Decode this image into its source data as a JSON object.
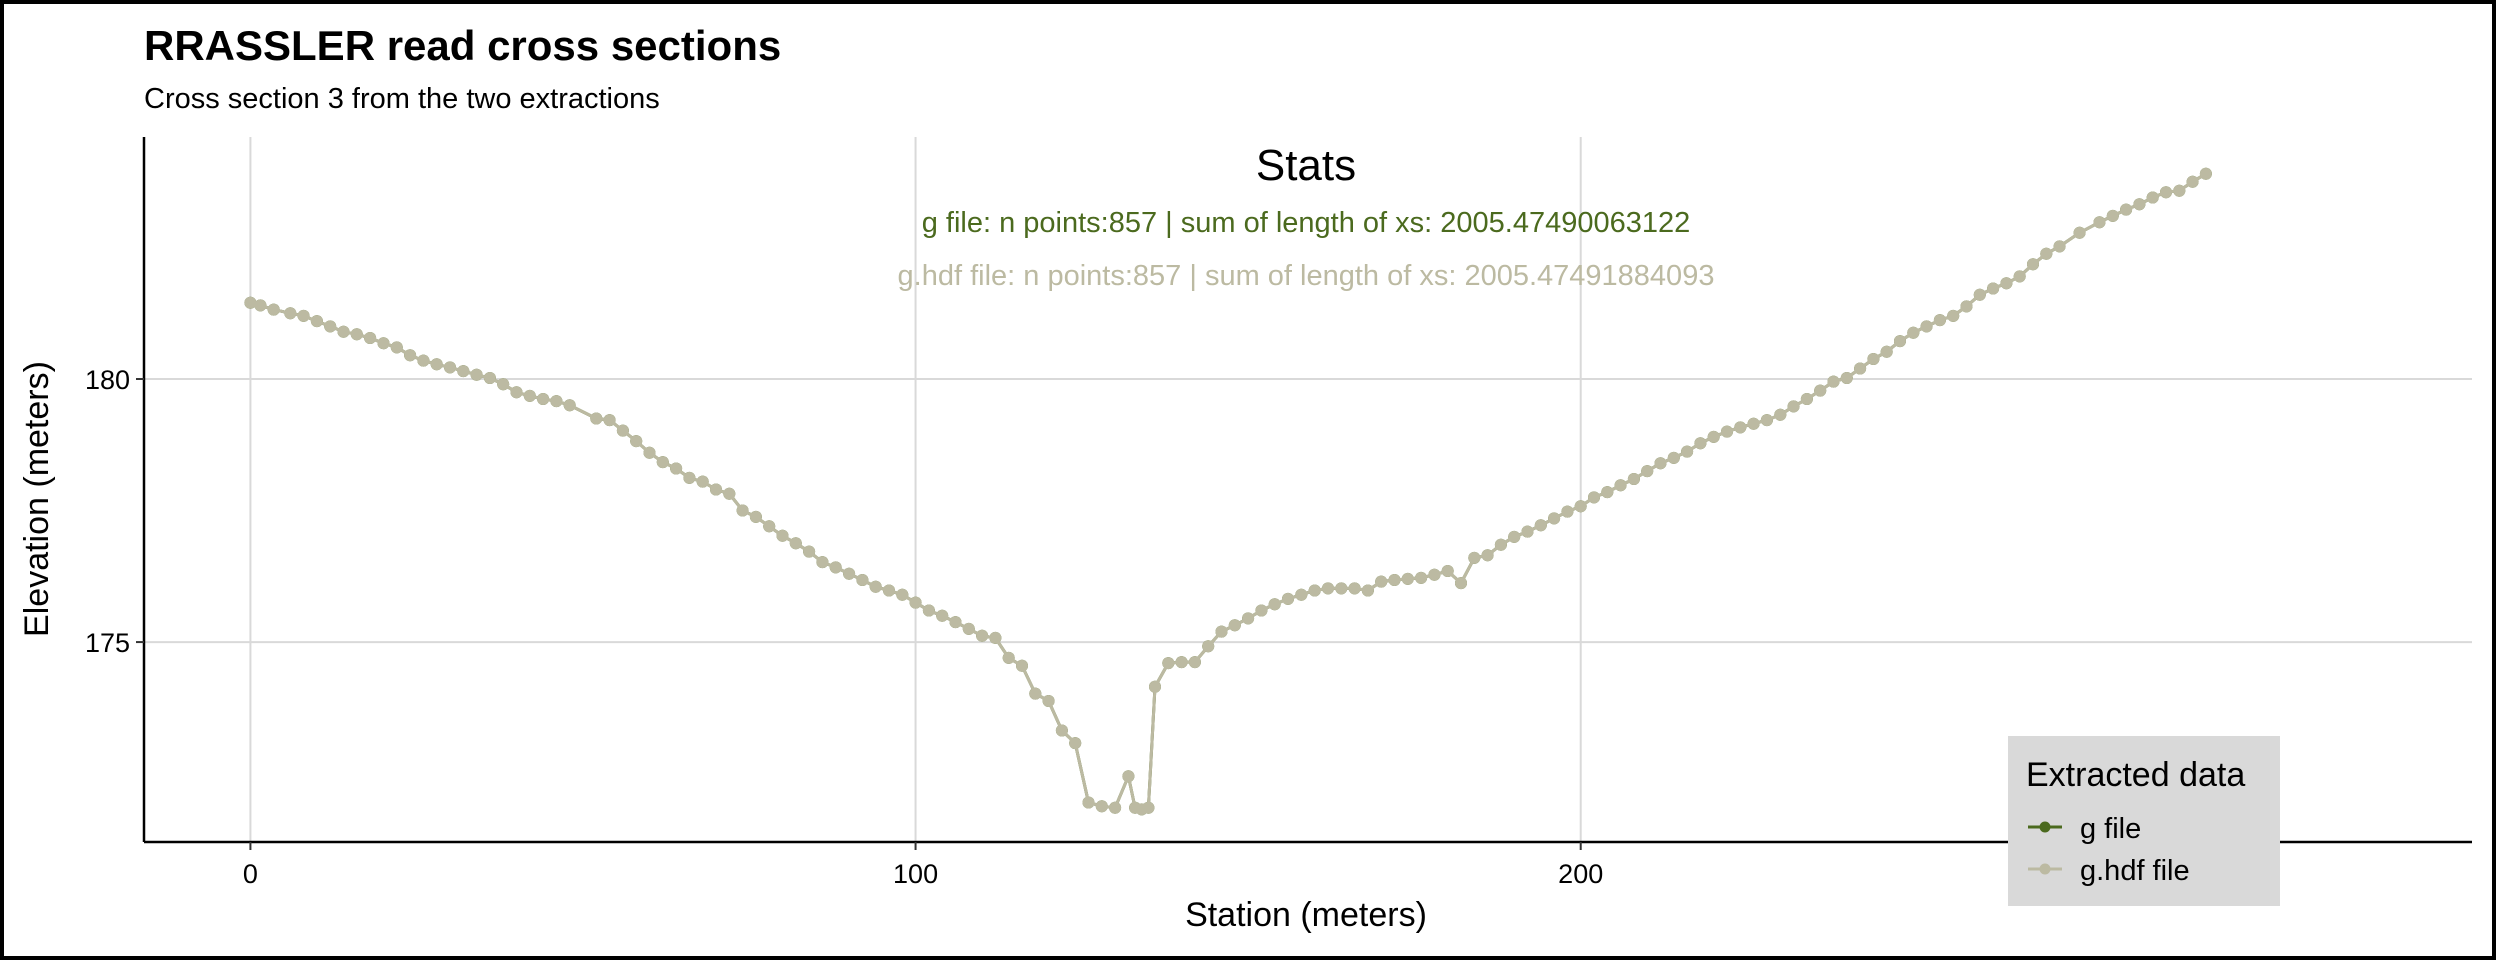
{
  "chart_data": {
    "type": "line",
    "title": "RRASSLER read cross sections",
    "subtitle": "Cross section 3 from the two extractions",
    "xlabel": "Station (meters)",
    "ylabel": "Elevation (meters)",
    "xlim": [
      -16,
      334
    ],
    "ylim": [
      171.2,
      184.6
    ],
    "xticks": [
      0,
      100,
      200
    ],
    "yticks": [
      175,
      180
    ],
    "grid": true,
    "legend": {
      "title": "Extracted data",
      "placement": "bottom-right",
      "entries": [
        "g file",
        "g.hdf file"
      ]
    },
    "annotation": {
      "title": "Stats",
      "lines": [
        "g file: n points:857 | sum of length of xs: 2005.47490063122",
        "g.hdf file: n points:857 | sum of length of xs: 2005.47491884093"
      ]
    },
    "series": [
      {
        "name": "g file",
        "color": "#4b6a1e",
        "points": [
          [
            0,
            181.45
          ],
          [
            1.5,
            181.4
          ],
          [
            3.5,
            181.32
          ],
          [
            6,
            181.25
          ],
          [
            8,
            181.2
          ],
          [
            10,
            181.1
          ],
          [
            12,
            181
          ],
          [
            14,
            180.9
          ],
          [
            16,
            180.85
          ],
          [
            18,
            180.78
          ],
          [
            20,
            180.68
          ],
          [
            22,
            180.6
          ],
          [
            24,
            180.45
          ],
          [
            26,
            180.35
          ],
          [
            28,
            180.28
          ],
          [
            30,
            180.22
          ],
          [
            32,
            180.15
          ],
          [
            34,
            180.08
          ],
          [
            36,
            180.02
          ],
          [
            38,
            179.9
          ],
          [
            40,
            179.75
          ],
          [
            42,
            179.68
          ],
          [
            44,
            179.62
          ],
          [
            46,
            179.58
          ],
          [
            48,
            179.5
          ],
          [
            52,
            179.25
          ],
          [
            54,
            179.22
          ],
          [
            56,
            179.02
          ],
          [
            58,
            178.82
          ],
          [
            60,
            178.6
          ],
          [
            62,
            178.42
          ],
          [
            64,
            178.3
          ],
          [
            66,
            178.12
          ],
          [
            68,
            178.05
          ],
          [
            70,
            177.9
          ],
          [
            72,
            177.82
          ],
          [
            74,
            177.5
          ],
          [
            76,
            177.38
          ],
          [
            78,
            177.2
          ],
          [
            80,
            177.02
          ],
          [
            82,
            176.88
          ],
          [
            84,
            176.72
          ],
          [
            86,
            176.52
          ],
          [
            88,
            176.42
          ],
          [
            90,
            176.3
          ],
          [
            92,
            176.18
          ],
          [
            94,
            176.05
          ],
          [
            96,
            175.98
          ],
          [
            98,
            175.9
          ],
          [
            100,
            175.75
          ],
          [
            102,
            175.6
          ],
          [
            104,
            175.5
          ],
          [
            106,
            175.38
          ],
          [
            108,
            175.25
          ],
          [
            110,
            175.12
          ],
          [
            112,
            175.08
          ],
          [
            114,
            174.7
          ],
          [
            116,
            174.55
          ],
          [
            118,
            174.02
          ],
          [
            120,
            173.88
          ],
          [
            122,
            173.32
          ],
          [
            124,
            173.08
          ],
          [
            126,
            171.95
          ],
          [
            128,
            171.88
          ],
          [
            130,
            171.85
          ],
          [
            132,
            172.45
          ],
          [
            133,
            171.85
          ],
          [
            134,
            171.82
          ],
          [
            135,
            171.85
          ],
          [
            136,
            174.15
          ],
          [
            138,
            174.6
          ],
          [
            140,
            174.62
          ],
          [
            142,
            174.62
          ],
          [
            144,
            174.92
          ],
          [
            146,
            175.2
          ],
          [
            148,
            175.32
          ],
          [
            150,
            175.45
          ],
          [
            152,
            175.6
          ],
          [
            154,
            175.72
          ],
          [
            156,
            175.82
          ],
          [
            158,
            175.9
          ],
          [
            160,
            175.98
          ],
          [
            162,
            176.02
          ],
          [
            164,
            176.02
          ],
          [
            166,
            176.02
          ],
          [
            168,
            175.98
          ],
          [
            170,
            176.15
          ],
          [
            172,
            176.18
          ],
          [
            174,
            176.2
          ],
          [
            176,
            176.22
          ],
          [
            178,
            176.28
          ],
          [
            180,
            176.35
          ],
          [
            182,
            176.12
          ],
          [
            184,
            176.6
          ],
          [
            186,
            176.65
          ],
          [
            188,
            176.85
          ],
          [
            190,
            177
          ],
          [
            192,
            177.1
          ],
          [
            194,
            177.22
          ],
          [
            196,
            177.35
          ],
          [
            198,
            177.48
          ],
          [
            200,
            177.58
          ],
          [
            202,
            177.75
          ],
          [
            204,
            177.85
          ],
          [
            206,
            177.98
          ],
          [
            208,
            178.1
          ],
          [
            210,
            178.25
          ],
          [
            212,
            178.4
          ],
          [
            214,
            178.5
          ],
          [
            216,
            178.62
          ],
          [
            218,
            178.78
          ],
          [
            220,
            178.9
          ],
          [
            222,
            179
          ],
          [
            224,
            179.08
          ],
          [
            226,
            179.15
          ],
          [
            228,
            179.22
          ],
          [
            230,
            179.32
          ],
          [
            232,
            179.48
          ],
          [
            234,
            179.62
          ],
          [
            236,
            179.78
          ],
          [
            238,
            179.95
          ],
          [
            240,
            180.02
          ],
          [
            242,
            180.2
          ],
          [
            244,
            180.38
          ],
          [
            246,
            180.52
          ],
          [
            248,
            180.72
          ],
          [
            250,
            180.88
          ],
          [
            252,
            181
          ],
          [
            254,
            181.12
          ],
          [
            256,
            181.2
          ],
          [
            258,
            181.38
          ],
          [
            260,
            181.6
          ],
          [
            262,
            181.72
          ],
          [
            264,
            181.82
          ],
          [
            266,
            181.95
          ],
          [
            268,
            182.18
          ],
          [
            270,
            182.38
          ],
          [
            272,
            182.52
          ],
          [
            275,
            182.78
          ],
          [
            278,
            182.98
          ],
          [
            280,
            183.1
          ],
          [
            282,
            183.22
          ],
          [
            284,
            183.32
          ],
          [
            286,
            183.45
          ],
          [
            288,
            183.55
          ],
          [
            290,
            183.58
          ],
          [
            292,
            183.75
          ],
          [
            294,
            183.9
          ]
        ]
      },
      {
        "name": "g.hdf file",
        "color": "#bcbaa2",
        "points": [
          [
            0,
            181.45
          ],
          [
            1.5,
            181.4
          ],
          [
            3.5,
            181.32
          ],
          [
            6,
            181.25
          ],
          [
            8,
            181.2
          ],
          [
            10,
            181.1
          ],
          [
            12,
            181
          ],
          [
            14,
            180.9
          ],
          [
            16,
            180.85
          ],
          [
            18,
            180.78
          ],
          [
            20,
            180.68
          ],
          [
            22,
            180.6
          ],
          [
            24,
            180.45
          ],
          [
            26,
            180.35
          ],
          [
            28,
            180.28
          ],
          [
            30,
            180.22
          ],
          [
            32,
            180.15
          ],
          [
            34,
            180.08
          ],
          [
            36,
            180.02
          ],
          [
            38,
            179.9
          ],
          [
            40,
            179.75
          ],
          [
            42,
            179.68
          ],
          [
            44,
            179.62
          ],
          [
            46,
            179.58
          ],
          [
            48,
            179.5
          ],
          [
            52,
            179.25
          ],
          [
            54,
            179.22
          ],
          [
            56,
            179.02
          ],
          [
            58,
            178.82
          ],
          [
            60,
            178.6
          ],
          [
            62,
            178.42
          ],
          [
            64,
            178.3
          ],
          [
            66,
            178.12
          ],
          [
            68,
            178.05
          ],
          [
            70,
            177.9
          ],
          [
            72,
            177.82
          ],
          [
            74,
            177.5
          ],
          [
            76,
            177.38
          ],
          [
            78,
            177.2
          ],
          [
            80,
            177.02
          ],
          [
            82,
            176.88
          ],
          [
            84,
            176.72
          ],
          [
            86,
            176.52
          ],
          [
            88,
            176.42
          ],
          [
            90,
            176.3
          ],
          [
            92,
            176.18
          ],
          [
            94,
            176.05
          ],
          [
            96,
            175.98
          ],
          [
            98,
            175.9
          ],
          [
            100,
            175.75
          ],
          [
            102,
            175.6
          ],
          [
            104,
            175.5
          ],
          [
            106,
            175.38
          ],
          [
            108,
            175.25
          ],
          [
            110,
            175.12
          ],
          [
            112,
            175.08
          ],
          [
            114,
            174.7
          ],
          [
            116,
            174.55
          ],
          [
            118,
            174.02
          ],
          [
            120,
            173.88
          ],
          [
            122,
            173.32
          ],
          [
            124,
            173.08
          ],
          [
            126,
            171.95
          ],
          [
            128,
            171.88
          ],
          [
            130,
            171.85
          ],
          [
            132,
            172.45
          ],
          [
            133,
            171.85
          ],
          [
            134,
            171.82
          ],
          [
            135,
            171.85
          ],
          [
            136,
            174.15
          ],
          [
            138,
            174.6
          ],
          [
            140,
            174.62
          ],
          [
            142,
            174.62
          ],
          [
            144,
            174.92
          ],
          [
            146,
            175.2
          ],
          [
            148,
            175.32
          ],
          [
            150,
            175.45
          ],
          [
            152,
            175.6
          ],
          [
            154,
            175.72
          ],
          [
            156,
            175.82
          ],
          [
            158,
            175.9
          ],
          [
            160,
            175.98
          ],
          [
            162,
            176.02
          ],
          [
            164,
            176.02
          ],
          [
            166,
            176.02
          ],
          [
            168,
            175.98
          ],
          [
            170,
            176.15
          ],
          [
            172,
            176.18
          ],
          [
            174,
            176.2
          ],
          [
            176,
            176.22
          ],
          [
            178,
            176.28
          ],
          [
            180,
            176.35
          ],
          [
            182,
            176.12
          ],
          [
            184,
            176.6
          ],
          [
            186,
            176.65
          ],
          [
            188,
            176.85
          ],
          [
            190,
            177
          ],
          [
            192,
            177.1
          ],
          [
            194,
            177.22
          ],
          [
            196,
            177.35
          ],
          [
            198,
            177.48
          ],
          [
            200,
            177.58
          ],
          [
            202,
            177.75
          ],
          [
            204,
            177.85
          ],
          [
            206,
            177.98
          ],
          [
            208,
            178.1
          ],
          [
            210,
            178.25
          ],
          [
            212,
            178.4
          ],
          [
            214,
            178.5
          ],
          [
            216,
            178.62
          ],
          [
            218,
            178.78
          ],
          [
            220,
            178.9
          ],
          [
            222,
            179
          ],
          [
            224,
            179.08
          ],
          [
            226,
            179.15
          ],
          [
            228,
            179.22
          ],
          [
            230,
            179.32
          ],
          [
            232,
            179.48
          ],
          [
            234,
            179.62
          ],
          [
            236,
            179.78
          ],
          [
            238,
            179.95
          ],
          [
            240,
            180.02
          ],
          [
            242,
            180.2
          ],
          [
            244,
            180.38
          ],
          [
            246,
            180.52
          ],
          [
            248,
            180.72
          ],
          [
            250,
            180.88
          ],
          [
            252,
            181
          ],
          [
            254,
            181.12
          ],
          [
            256,
            181.2
          ],
          [
            258,
            181.38
          ],
          [
            260,
            181.6
          ],
          [
            262,
            181.72
          ],
          [
            264,
            181.82
          ],
          [
            266,
            181.95
          ],
          [
            268,
            182.18
          ],
          [
            270,
            182.38
          ],
          [
            272,
            182.52
          ],
          [
            275,
            182.78
          ],
          [
            278,
            182.98
          ],
          [
            280,
            183.1
          ],
          [
            282,
            183.22
          ],
          [
            284,
            183.32
          ],
          [
            286,
            183.45
          ],
          [
            288,
            183.55
          ],
          [
            290,
            183.58
          ],
          [
            292,
            183.75
          ],
          [
            294,
            183.9
          ]
        ]
      }
    ]
  }
}
